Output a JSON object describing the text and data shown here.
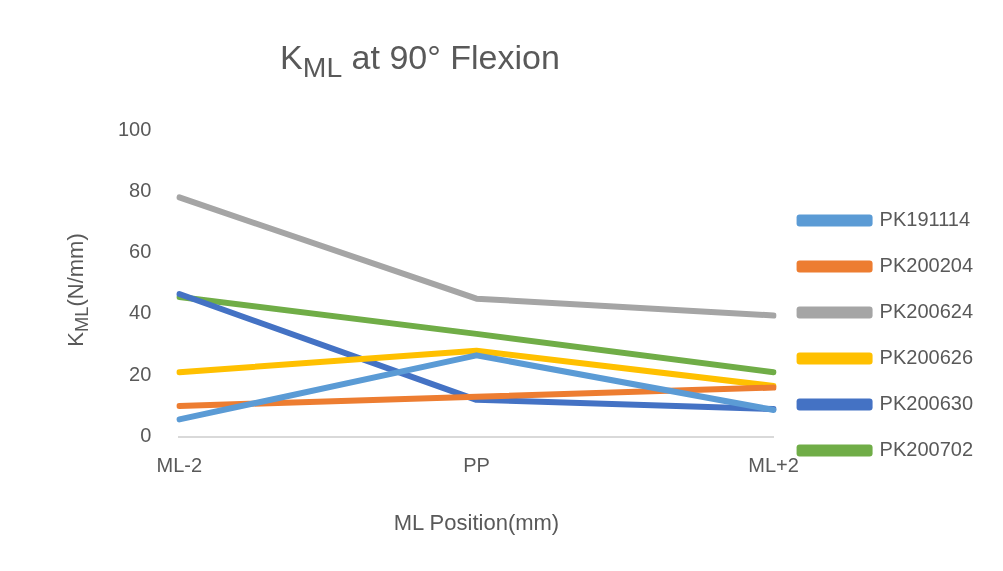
{
  "chart_data": {
    "type": "line",
    "title": "K$_{ML}$ at 90° Flexion",
    "xlabel": "ML Position(mm)",
    "ylabel": "K$_{ML}$(N/mm)",
    "categories": [
      "ML-2",
      "PP",
      "ML+2"
    ],
    "series": [
      {
        "name": "PK191114",
        "color": "#5b9bd5",
        "values": [
          5.6,
          26.5,
          8.7
        ]
      },
      {
        "name": "PK200204",
        "color": "#ed7d31",
        "values": [
          10,
          13,
          16
        ]
      },
      {
        "name": "PK200624",
        "color": "#a5a5a5",
        "values": [
          78,
          45,
          39.5
        ]
      },
      {
        "name": "PK200626",
        "color": "#ffc000",
        "values": [
          21,
          28,
          16.5
        ]
      },
      {
        "name": "PK200630",
        "color": "#4472c4",
        "values": [
          46.5,
          12,
          9
        ]
      },
      {
        "name": "PK200702",
        "color": "#70ad47",
        "values": [
          45.5,
          33.5,
          21
        ]
      }
    ],
    "ylim": [
      0,
      100
    ],
    "yticks": [
      0,
      20,
      40,
      60,
      80,
      100
    ],
    "grid": false,
    "legend": "right",
    "marker": "none",
    "line_style": "solid"
  }
}
